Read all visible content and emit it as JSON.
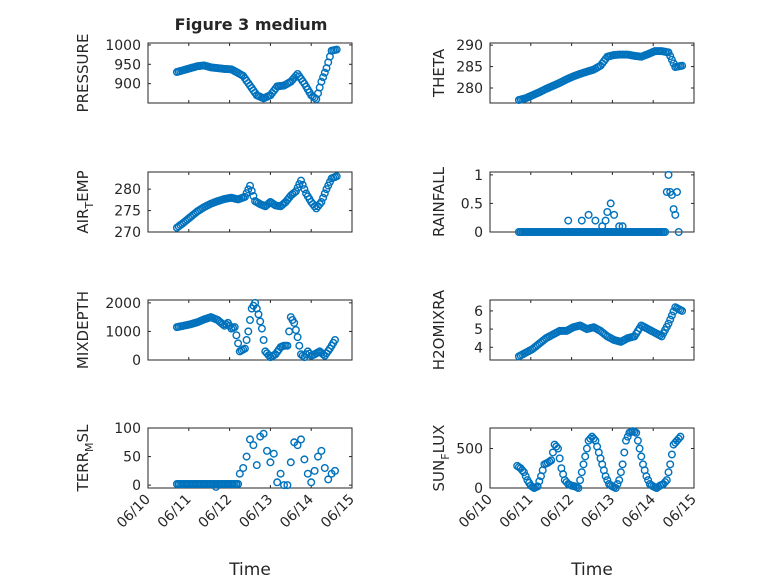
{
  "title": "Figure 3 medium",
  "colors": {
    "series": "#0072BD",
    "axes": "#262626",
    "background": "#ffffff"
  },
  "chart_data": [
    {
      "type": "scatter",
      "panel": "pressure",
      "ylabel": "PRESSURE",
      "xlabel": "",
      "xlim": [
        "06/10",
        "06/15"
      ],
      "ylim": [
        850,
        1005
      ],
      "yticks": [
        900,
        950,
        1000
      ],
      "xtick_labels": [],
      "grid": "on, major and minor",
      "marker": "open circle",
      "x": [
        "06/10 17:00",
        "06/10 21:00",
        "06/11 01:00",
        "06/11 05:00",
        "06/11 09:00",
        "06/11 13:00",
        "06/11 17:00",
        "06/11 21:00",
        "06/12 01:00",
        "06/12 04:00",
        "06/12 08:00",
        "06/12 12:00",
        "06/12 16:00",
        "06/12 20:00",
        "06/13 00:00",
        "06/13 04:00",
        "06/13 08:00",
        "06/13 12:00",
        "06/13 16:00",
        "06/13 20:00",
        "06/14 00:00",
        "06/14 03:00",
        "06/14 06:00",
        "06/14 09:00",
        "06/14 12:00",
        "06/14 15:00"
      ],
      "y": [
        930,
        935,
        940,
        945,
        947,
        942,
        940,
        938,
        937,
        930,
        920,
        895,
        870,
        862,
        870,
        893,
        895,
        905,
        925,
        900,
        870,
        860,
        905,
        940,
        985,
        988
      ]
    },
    {
      "type": "scatter",
      "panel": "theta",
      "ylabel": "THETA",
      "xlabel": "",
      "xlim": [
        "06/10",
        "06/15"
      ],
      "ylim": [
        276.5,
        290.5
      ],
      "yticks": [
        280,
        285,
        290
      ],
      "xtick_labels": [],
      "grid": "on, major and minor",
      "marker": "open circle",
      "x": [
        "06/10 17:00",
        "06/10 21:00",
        "06/11 01:00",
        "06/11 05:00",
        "06/11 09:00",
        "06/11 13:00",
        "06/11 17:00",
        "06/11 21:00",
        "06/12 01:00",
        "06/12 05:00",
        "06/12 09:00",
        "06/12 13:00",
        "06/12 17:00",
        "06/12 21:00",
        "06/13 01:00",
        "06/13 05:00",
        "06/13 09:00",
        "06/13 13:00",
        "06/13 17:00",
        "06/13 21:00",
        "06/14 01:00",
        "06/14 05:00",
        "06/14 09:00",
        "06/14 13:00",
        "06/14 17:00"
      ],
      "y": [
        277.2,
        277.6,
        278.3,
        279.0,
        279.8,
        280.5,
        281.2,
        282.0,
        282.7,
        283.3,
        283.8,
        284.3,
        285.2,
        287.3,
        287.7,
        287.8,
        287.8,
        287.5,
        287.3,
        287.9,
        288.6,
        288.6,
        288.3,
        284.9,
        285.2
      ]
    },
    {
      "type": "scatter",
      "panel": "air_temp",
      "ylabel": "AIR_TEMP",
      "ylabel_parts": [
        "AIR",
        "T",
        "EMP"
      ],
      "xlabel": "",
      "xlim": [
        "06/10",
        "06/15"
      ],
      "ylim": [
        270,
        284
      ],
      "yticks": [
        270,
        275,
        280
      ],
      "xtick_labels": [],
      "grid": "on, major and minor",
      "marker": "open circle",
      "x": [
        "06/10 17:00",
        "06/10 21:00",
        "06/11 01:00",
        "06/11 05:00",
        "06/11 09:00",
        "06/11 13:00",
        "06/11 17:00",
        "06/11 21:00",
        "06/12 01:00",
        "06/12 05:00",
        "06/12 09:00",
        "06/12 12:00",
        "06/12 15:00",
        "06/12 18:00",
        "06/12 21:00",
        "06/13 00:00",
        "06/13 03:00",
        "06/13 06:00",
        "06/13 09:00",
        "06/13 12:00",
        "06/13 15:00",
        "06/13 18:00",
        "06/13 21:00",
        "06/14 00:00",
        "06/14 03:00",
        "06/14 06:00",
        "06/14 09:00",
        "06/14 12:00",
        "06/14 15:00"
      ],
      "y": [
        271.0,
        272.2,
        273.5,
        274.8,
        275.8,
        276.6,
        277.2,
        277.7,
        278.0,
        277.6,
        278.2,
        280.8,
        277.2,
        276.5,
        276.0,
        277.0,
        276.2,
        276.0,
        277.0,
        278.5,
        279.5,
        282.0,
        279.0,
        277.0,
        275.5,
        277.0,
        280.0,
        282.5,
        283.0
      ]
    },
    {
      "type": "scatter",
      "panel": "rainfall",
      "ylabel": "RAINFALL",
      "xlabel": "",
      "xlim": [
        "06/10",
        "06/15"
      ],
      "ylim": [
        0,
        1.05
      ],
      "yticks": [
        0,
        0.5,
        1
      ],
      "ytick_labels": [
        "0",
        "0.5",
        "1"
      ],
      "xtick_labels": [],
      "grid": "on, major and minor",
      "marker": "open circle",
      "baseline_range": [
        "06/10 17:00",
        "06/14 07:00"
      ],
      "baseline_value": 0,
      "x": [
        "06/11 22:00",
        "06/12 06:00",
        "06/12 10:00",
        "06/12 14:00",
        "06/12 18:00",
        "06/12 20:00",
        "06/12 21:00",
        "06/12 23:00",
        "06/13 01:00",
        "06/13 04:00",
        "06/13 06:00",
        "06/14 08:00",
        "06/14 09:00",
        "06/14 10:00",
        "06/14 11:00",
        "06/14 12:00",
        "06/14 13:00",
        "06/14 14:00",
        "06/14 15:00"
      ],
      "y": [
        0.2,
        0.2,
        0.3,
        0.2,
        0.1,
        0.2,
        0.35,
        0.5,
        0.3,
        0.1,
        0.1,
        0.7,
        1.0,
        0.7,
        0.65,
        0.4,
        0.3,
        0.7,
        0.0
      ]
    },
    {
      "type": "scatter",
      "panel": "mixdepth",
      "ylabel": "MIXDEPTH",
      "xlabel": "",
      "xlim": [
        "06/10",
        "06/15"
      ],
      "ylim": [
        0,
        2100
      ],
      "yticks": [
        0,
        1000,
        2000
      ],
      "xtick_labels": [],
      "grid": "on, major and minor",
      "marker": "open circle",
      "x": [
        "06/10 17:00",
        "06/10 21:00",
        "06/11 01:00",
        "06/11 05:00",
        "06/11 09:00",
        "06/11 13:00",
        "06/11 17:00",
        "06/11 21:00",
        "06/11 23:00",
        "06/12 01:00",
        "06/12 03:00",
        "06/12 06:00",
        "06/12 09:00",
        "06/12 11:00",
        "06/12 13:00",
        "06/12 15:00",
        "06/12 17:00",
        "06/12 19:00",
        "06/12 21:00",
        "06/13 00:00",
        "06/13 03:00",
        "06/13 06:00",
        "06/13 08:00",
        "06/13 10:00",
        "06/13 12:00",
        "06/13 14:00",
        "06/13 16:00",
        "06/13 18:00",
        "06/13 20:00",
        "06/13 22:00",
        "06/14 00:00",
        "06/14 02:00",
        "06/14 05:00",
        "06/14 08:00",
        "06/14 11:00",
        "06/14 14:00"
      ],
      "y": [
        1150,
        1200,
        1250,
        1320,
        1420,
        1500,
        1400,
        1200,
        1300,
        1100,
        1150,
        300,
        400,
        1000,
        1800,
        2000,
        1600,
        1100,
        300,
        100,
        200,
        450,
        500,
        500,
        1500,
        1300,
        800,
        200,
        100,
        300,
        150,
        200,
        300,
        150,
        400,
        700
      ]
    },
    {
      "type": "scatter",
      "panel": "h2omixra",
      "ylabel": "H2OMIXRA",
      "xlabel": "",
      "xlim": [
        "06/10",
        "06/15"
      ],
      "ylim": [
        3.3,
        6.6
      ],
      "yticks": [
        4,
        5,
        6
      ],
      "xtick_labels": [],
      "grid": "on, major and minor",
      "marker": "open circle",
      "x": [
        "06/10 17:00",
        "06/10 21:00",
        "06/11 01:00",
        "06/11 05:00",
        "06/11 09:00",
        "06/11 13:00",
        "06/11 17:00",
        "06/11 21:00",
        "06/12 01:00",
        "06/12 05:00",
        "06/12 09:00",
        "06/12 13:00",
        "06/12 17:00",
        "06/12 21:00",
        "06/13 01:00",
        "06/13 05:00",
        "06/13 09:00",
        "06/13 13:00",
        "06/13 17:00",
        "06/13 21:00",
        "06/14 01:00",
        "06/14 05:00",
        "06/14 09:00",
        "06/14 13:00",
        "06/14 17:00"
      ],
      "y": [
        3.5,
        3.7,
        3.9,
        4.2,
        4.5,
        4.7,
        4.9,
        4.9,
        5.1,
        5.2,
        5.0,
        5.1,
        4.9,
        4.6,
        4.4,
        4.3,
        4.5,
        4.6,
        5.2,
        5.0,
        4.8,
        4.6,
        5.3,
        6.2,
        6.0
      ]
    },
    {
      "type": "scatter",
      "panel": "terr_msl",
      "ylabel": "TERR_MSL",
      "ylabel_parts": [
        "TERR",
        "M",
        "SL"
      ],
      "xlabel": "Time",
      "xlim": [
        "06/10",
        "06/15"
      ],
      "ylim": [
        -5,
        100
      ],
      "yticks": [
        0,
        50,
        100
      ],
      "xtick_labels": [
        "06/10",
        "06/11",
        "06/12",
        "06/13",
        "06/14",
        "06/15"
      ],
      "grid": "on, major and minor",
      "marker": "open circle",
      "baseline_range": [
        "06/10 17:00",
        "06/12 05:00"
      ],
      "baseline_value": 2,
      "x": [
        "06/11 16:00",
        "06/12 06:00",
        "06/12 08:00",
        "06/12 10:00",
        "06/12 12:00",
        "06/12 14:00",
        "06/12 16:00",
        "06/12 18:00",
        "06/12 20:00",
        "06/12 22:00",
        "06/13 00:00",
        "06/13 02:00",
        "06/13 04:00",
        "06/13 06:00",
        "06/13 08:00",
        "06/13 10:00",
        "06/13 12:00",
        "06/13 14:00",
        "06/13 16:00",
        "06/13 18:00",
        "06/13 20:00",
        "06/13 22:00",
        "06/14 00:00",
        "06/14 02:00",
        "06/14 04:00",
        "06/14 06:00",
        "06/14 08:00",
        "06/14 10:00",
        "06/14 12:00",
        "06/14 14:00"
      ],
      "y": [
        -3,
        20,
        30,
        50,
        80,
        70,
        35,
        85,
        90,
        60,
        40,
        55,
        5,
        20,
        0,
        0,
        40,
        75,
        70,
        80,
        45,
        20,
        5,
        25,
        50,
        60,
        30,
        10,
        20,
        25
      ]
    },
    {
      "type": "scatter",
      "panel": "sun_flux",
      "ylabel": "SUN_FLUX",
      "ylabel_parts": [
        "SUN",
        "F",
        "LUX"
      ],
      "xlabel": "Time",
      "xlim": [
        "06/10",
        "06/15"
      ],
      "ylim": [
        0,
        760
      ],
      "yticks": [
        0,
        500
      ],
      "xtick_labels": [
        "06/10",
        "06/11",
        "06/12",
        "06/13",
        "06/14",
        "06/15"
      ],
      "grid": "on, major and minor",
      "marker": "open circle",
      "x": [
        "06/10 16:00",
        "06/10 18:00",
        "06/10 20:00",
        "06/10 22:00",
        "06/11 00:00",
        "06/11 02:00",
        "06/11 04:00",
        "06/11 06:00",
        "06/11 08:00",
        "06/11 10:00",
        "06/11 12:00",
        "06/11 14:00",
        "06/11 16:00",
        "06/11 18:00",
        "06/11 20:00",
        "06/11 22:00",
        "06/12 00:00",
        "06/12 02:00",
        "06/12 04:00",
        "06/12 06:00",
        "06/12 08:00",
        "06/12 10:00",
        "06/12 12:00",
        "06/12 14:00",
        "06/12 16:00",
        "06/12 18:00",
        "06/12 20:00",
        "06/12 22:00",
        "06/13 00:00",
        "06/13 02:00",
        "06/13 04:00",
        "06/13 06:00",
        "06/13 08:00",
        "06/13 10:00",
        "06/13 12:00",
        "06/13 14:00",
        "06/13 16:00",
        "06/13 18:00",
        "06/13 20:00",
        "06/13 22:00",
        "06/14 00:00",
        "06/14 02:00",
        "06/14 04:00",
        "06/14 06:00",
        "06/14 08:00",
        "06/14 10:00",
        "06/14 12:00",
        "06/14 14:00",
        "06/14 16:00"
      ],
      "y": [
        280,
        250,
        200,
        100,
        30,
        0,
        20,
        150,
        300,
        320,
        350,
        550,
        500,
        250,
        100,
        50,
        30,
        20,
        0,
        200,
        400,
        600,
        650,
        600,
        450,
        300,
        150,
        50,
        20,
        0,
        100,
        300,
        600,
        700,
        720,
        700,
        500,
        300,
        150,
        50,
        20,
        0,
        30,
        50,
        100,
        300,
        550,
        600,
        650
      ]
    }
  ]
}
